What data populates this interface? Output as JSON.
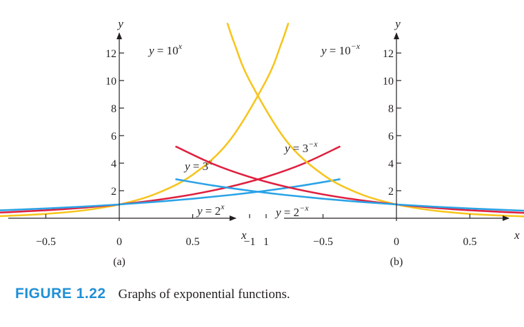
{
  "caption": {
    "number": "FIGURE 1.22",
    "text": "Graphs of exponential functions."
  },
  "chart_data": [
    {
      "type": "line",
      "panel_label": "(a)",
      "xlabel": "x",
      "ylabel": "y",
      "xlim": [
        -1.45,
        1.5
      ],
      "ylim": [
        0,
        14.5
      ],
      "x_ticks": [
        {
          "value": -1,
          "label": "−1"
        },
        {
          "value": -0.5,
          "label": "−0.5"
        },
        {
          "value": 0,
          "label": "0"
        },
        {
          "value": 0.5,
          "label": "0.5"
        },
        {
          "value": 1,
          "label": "1"
        }
      ],
      "y_ticks": [
        {
          "value": 2,
          "label": "2"
        },
        {
          "value": 4,
          "label": "4"
        },
        {
          "value": 6,
          "label": "6"
        },
        {
          "value": 8,
          "label": "8"
        },
        {
          "value": 10,
          "label": "10"
        },
        {
          "value": 12,
          "label": "12"
        }
      ],
      "series": [
        {
          "name": "y = 10^x",
          "label_base": "y = 10",
          "label_exp": "x",
          "color": "#f7c51e",
          "x": [
            -1.45,
            -1.25,
            -1,
            -0.75,
            -0.5,
            -0.25,
            0,
            0.25,
            0.5,
            0.75,
            1,
            1.1,
            1.15
          ],
          "y": [
            0.035,
            0.056,
            0.1,
            0.178,
            0.316,
            0.562,
            1,
            1.778,
            3.162,
            5.623,
            10,
            12.59,
            14.13
          ]
        },
        {
          "name": "y = 3^x",
          "label_base": "y = 3",
          "label_exp": "x",
          "color": "#e0203f",
          "x": [
            -1.45,
            -1.25,
            -1,
            -0.75,
            -0.5,
            -0.25,
            0,
            0.25,
            0.5,
            0.75,
            1,
            1.25,
            1.5
          ],
          "y": [
            0.203,
            0.253,
            0.333,
            0.439,
            0.577,
            0.76,
            1,
            1.316,
            1.732,
            2.28,
            3,
            3.948,
            5.196
          ]
        },
        {
          "name": "y = 2^x",
          "label_base": "y = 2",
          "label_exp": "x",
          "color": "#2ba3e6",
          "x": [
            -1.45,
            -1.25,
            -1,
            -0.75,
            -0.5,
            -0.25,
            0,
            0.25,
            0.5,
            0.75,
            1,
            1.25,
            1.5
          ],
          "y": [
            0.366,
            0.42,
            0.5,
            0.595,
            0.707,
            0.841,
            1,
            1.189,
            1.414,
            1.682,
            2,
            2.378,
            2.828
          ]
        }
      ]
    },
    {
      "type": "line",
      "panel_label": "(b)",
      "xlabel": "x",
      "ylabel": "y",
      "xlim": [
        -1.5,
        1.5
      ],
      "ylim": [
        0,
        14.5
      ],
      "x_ticks": [
        {
          "value": -1,
          "label": "−1"
        },
        {
          "value": -0.5,
          "label": "−0.5"
        },
        {
          "value": 0,
          "label": "0"
        },
        {
          "value": 0.5,
          "label": "0.5"
        },
        {
          "value": 1,
          "label": "1"
        }
      ],
      "y_ticks": [
        {
          "value": 2,
          "label": "2"
        },
        {
          "value": 4,
          "label": "4"
        },
        {
          "value": 6,
          "label": "6"
        },
        {
          "value": 8,
          "label": "8"
        },
        {
          "value": 10,
          "label": "10"
        },
        {
          "value": 12,
          "label": "12"
        }
      ],
      "series": [
        {
          "name": "y = 10^−x",
          "label_base": "y = 10",
          "label_exp": "−x",
          "color": "#f7c51e",
          "x": [
            -1.15,
            -1.1,
            -1,
            -0.75,
            -0.5,
            -0.25,
            0,
            0.25,
            0.5,
            0.75,
            1,
            1.25,
            1.45
          ],
          "y": [
            14.13,
            12.59,
            10,
            5.623,
            3.162,
            1.778,
            1,
            0.562,
            0.316,
            0.178,
            0.1,
            0.056,
            0.035
          ]
        },
        {
          "name": "y = 3^−x",
          "label_base": "y = 3",
          "label_exp": "−x",
          "color": "#e0203f",
          "x": [
            -1.5,
            -1.25,
            -1,
            -0.75,
            -0.5,
            -0.25,
            0,
            0.25,
            0.5,
            0.75,
            1,
            1.25,
            1.45
          ],
          "y": [
            5.196,
            3.948,
            3,
            2.28,
            1.732,
            1.316,
            1,
            0.76,
            0.577,
            0.439,
            0.333,
            0.253,
            0.203
          ]
        },
        {
          "name": "y = 2^−x",
          "label_base": "y = 2",
          "label_exp": "−x",
          "color": "#2ba3e6",
          "x": [
            -1.5,
            -1.25,
            -1,
            -0.75,
            -0.5,
            -0.25,
            0,
            0.25,
            0.5,
            0.75,
            1,
            1.25,
            1.45
          ],
          "y": [
            2.828,
            2.378,
            2,
            1.682,
            1.414,
            1.189,
            1,
            0.841,
            0.707,
            0.595,
            0.5,
            0.42,
            0.366
          ]
        }
      ]
    }
  ]
}
